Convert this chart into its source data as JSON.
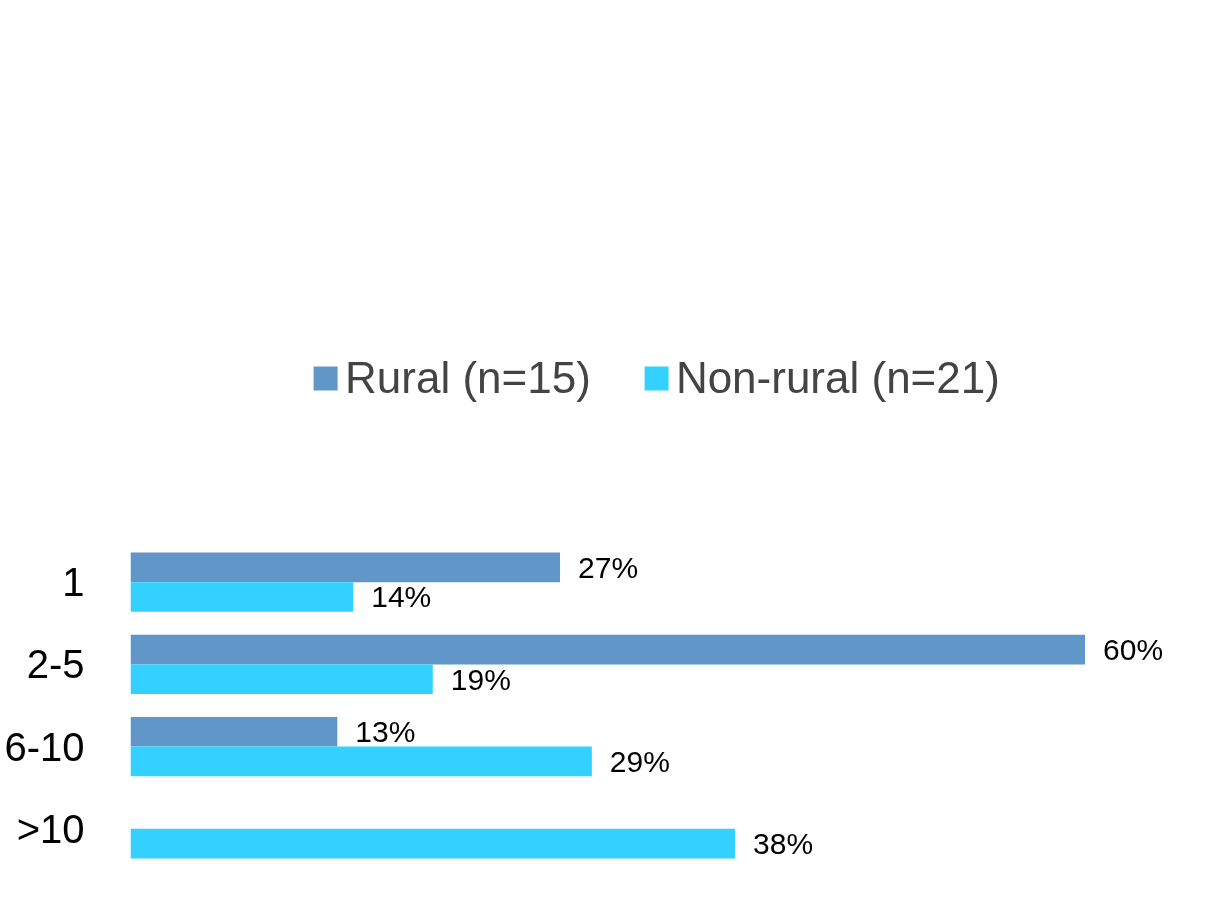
{
  "chart_data": {
    "type": "bar",
    "orientation": "horizontal",
    "categories": [
      "1",
      "2-5",
      "6-10",
      ">10"
    ],
    "series": [
      {
        "name": "Rural (n=15)",
        "color": "#6196c9",
        "values": [
          27,
          60,
          13,
          null
        ],
        "value_labels": [
          "27%",
          "60%",
          "13%",
          null
        ]
      },
      {
        "name": "Non-rural (n=21)",
        "color": "#33d1ff",
        "values": [
          14,
          19,
          29,
          38
        ],
        "value_labels": [
          "14%",
          "19%",
          "29%",
          "38%"
        ]
      }
    ],
    "legend": "top",
    "grid": false
  }
}
